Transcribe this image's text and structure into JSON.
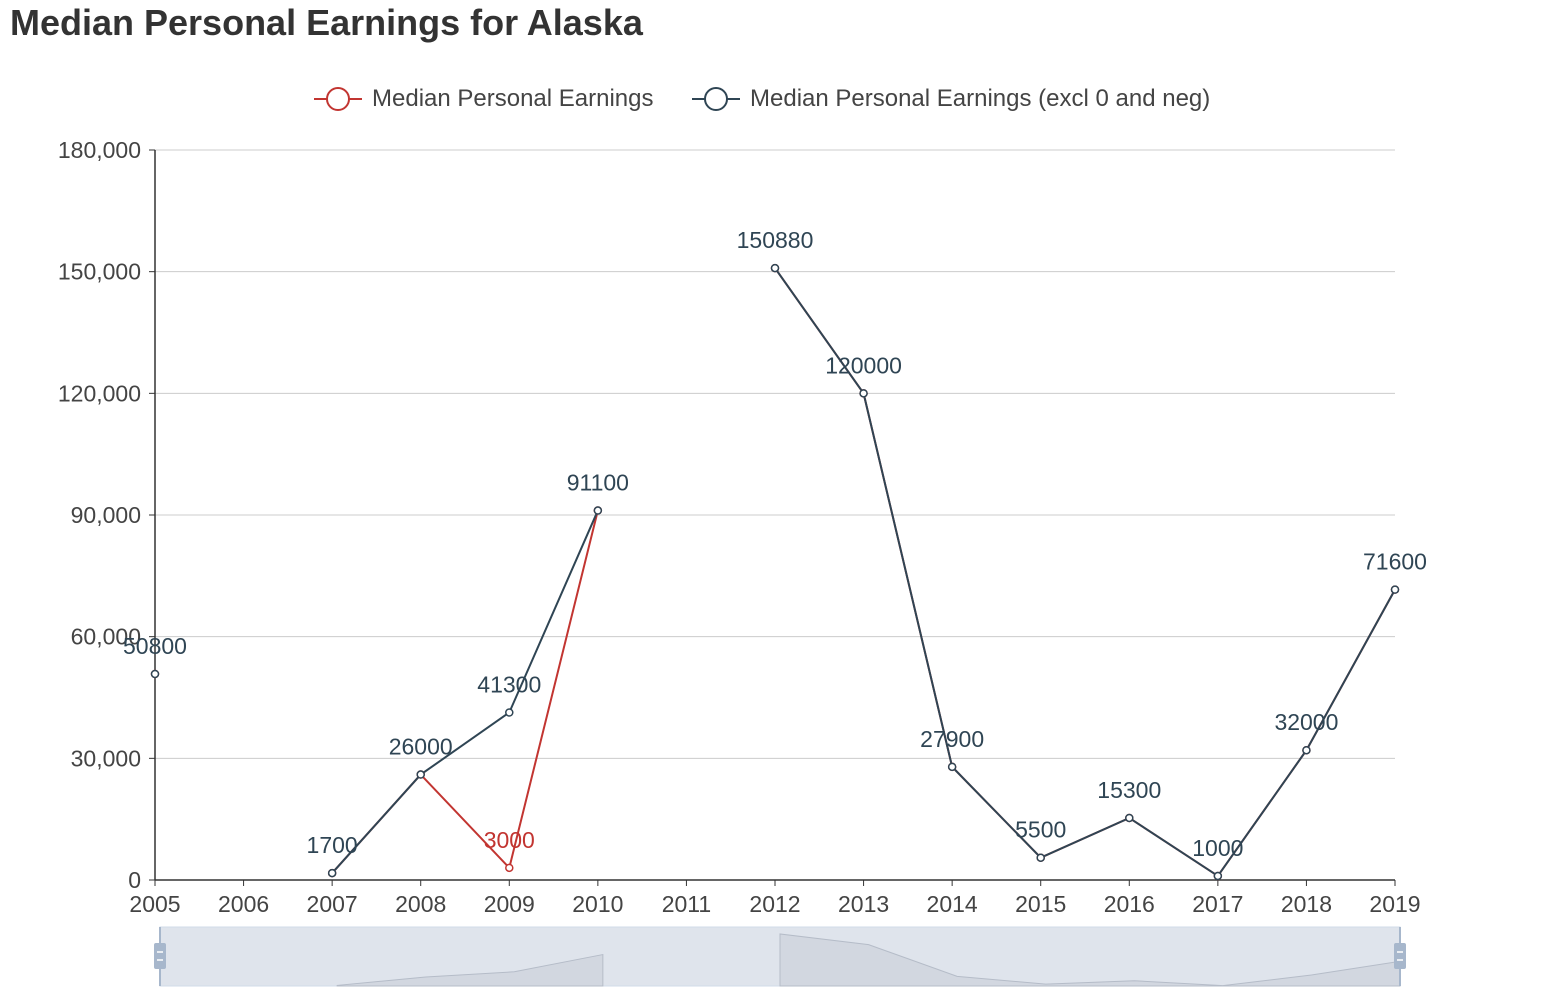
{
  "title": "Median Personal Earnings for Alaska",
  "legend": [
    {
      "name": "Median Personal Earnings",
      "color": "#c23531"
    },
    {
      "name": "Median Personal Earnings (excl 0 and neg)",
      "color": "#2f4554"
    }
  ],
  "chart_data": {
    "type": "line",
    "title": "Median Personal Earnings for Alaska",
    "x": [
      "2005",
      "2006",
      "2007",
      "2008",
      "2009",
      "2010",
      "2011",
      "2012",
      "2013",
      "2014",
      "2015",
      "2016",
      "2017",
      "2018",
      "2019"
    ],
    "y_ticks": [
      "0",
      "30,000",
      "60,000",
      "90,000",
      "120,000",
      "150,000",
      "180,000"
    ],
    "ylim": [
      0,
      180000
    ],
    "grid": true,
    "legend_position": "top-center",
    "series": [
      {
        "name": "Median Personal Earnings",
        "color": "#c23531",
        "values": [
          50800,
          null,
          1700,
          26000,
          3000,
          91100,
          null,
          150880,
          120000,
          27900,
          5500,
          15300,
          1000,
          32000,
          71600
        ]
      },
      {
        "name": "Median Personal Earnings (excl 0 and neg)",
        "color": "#2f4554",
        "values": [
          50800,
          null,
          1700,
          26000,
          41300,
          91100,
          null,
          150880,
          120000,
          27900,
          5500,
          15300,
          1000,
          32000,
          71600
        ]
      }
    ],
    "data_zoom": {
      "range": [
        0,
        100
      ],
      "handle_color": "#a7b7cc",
      "fill": "#dfe4ec"
    }
  }
}
